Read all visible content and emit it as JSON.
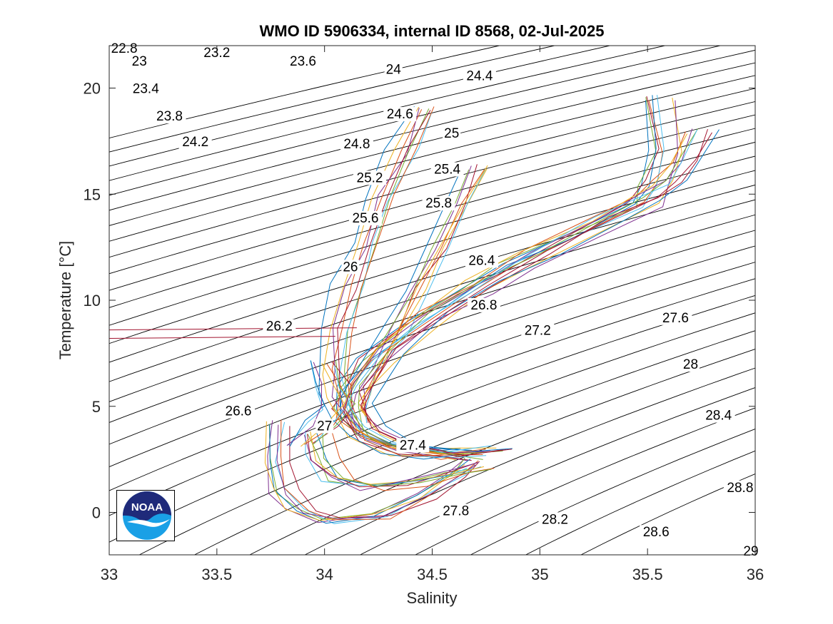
{
  "chart_data": {
    "type": "line",
    "title": "WMO ID 5906334, internal ID 8568, 02-Jul-2025",
    "xlabel": "Salinity",
    "ylabel": "Temperature [°C]",
    "xlim": [
      33,
      36
    ],
    "ylim": [
      -2,
      22
    ],
    "xticks": [
      33,
      33.5,
      34,
      34.5,
      35,
      35.5,
      36
    ],
    "xtick_labels": [
      "33",
      "33.5",
      "34",
      "34.5",
      "35",
      "35.5",
      "36"
    ],
    "yticks": [
      0,
      5,
      10,
      15,
      20
    ],
    "ytick_labels": [
      "0",
      "5",
      "10",
      "15",
      "20"
    ],
    "grid": false,
    "logo": "NOAA",
    "isopycnal_labels": [
      {
        "text": "22.8",
        "s": 33.07,
        "t": 21.7
      },
      {
        "text": "23",
        "s": 33.14,
        "t": 21.1
      },
      {
        "text": "23.2",
        "s": 33.5,
        "t": 21.5
      },
      {
        "text": "23.4",
        "s": 33.17,
        "t": 19.8
      },
      {
        "text": "23.6",
        "s": 33.9,
        "t": 21.1
      },
      {
        "text": "23.8",
        "s": 33.28,
        "t": 18.5
      },
      {
        "text": "24",
        "s": 34.32,
        "t": 20.7
      },
      {
        "text": "24.2",
        "s": 33.4,
        "t": 17.3
      },
      {
        "text": "24.4",
        "s": 34.72,
        "t": 20.4
      },
      {
        "text": "24.6",
        "s": 34.35,
        "t": 18.6
      },
      {
        "text": "24.8",
        "s": 34.15,
        "t": 17.2
      },
      {
        "text": "25",
        "s": 34.59,
        "t": 17.7
      },
      {
        "text": "25.2",
        "s": 34.21,
        "t": 15.6
      },
      {
        "text": "25.4",
        "s": 34.57,
        "t": 16.0
      },
      {
        "text": "25.6",
        "s": 34.19,
        "t": 13.7
      },
      {
        "text": "25.8",
        "s": 34.53,
        "t": 14.4
      },
      {
        "text": "26",
        "s": 34.12,
        "t": 11.4
      },
      {
        "text": "26.4",
        "s": 34.73,
        "t": 11.7
      },
      {
        "text": "26.2",
        "s": 33.79,
        "t": 8.6
      },
      {
        "text": "26.8",
        "s": 34.74,
        "t": 9.6
      },
      {
        "text": "27.2",
        "s": 34.99,
        "t": 8.4
      },
      {
        "text": "27.6",
        "s": 35.63,
        "t": 9.0
      },
      {
        "text": "28",
        "s": 35.7,
        "t": 6.8
      },
      {
        "text": "26.6",
        "s": 33.6,
        "t": 4.6
      },
      {
        "text": "27",
        "s": 34.0,
        "t": 3.9
      },
      {
        "text": "28.4",
        "s": 35.83,
        "t": 4.4
      },
      {
        "text": "27.4",
        "s": 34.41,
        "t": 3.0
      },
      {
        "text": "28.8",
        "s": 35.93,
        "t": 1.0
      },
      {
        "text": "27.8",
        "s": 34.61,
        "t": -0.1
      },
      {
        "text": "28.2",
        "s": 35.07,
        "t": -0.5
      },
      {
        "text": "28.6",
        "s": 35.54,
        "t": -1.1
      },
      {
        "text": "29",
        "s": 35.98,
        "t": -2.0
      }
    ],
    "profile_colors": [
      "#0072BD",
      "#D95319",
      "#EDB120",
      "#7E2F8E",
      "#77AC30",
      "#4DBEEE",
      "#A2142F"
    ],
    "profile_families": [
      {
        "name": "",
        "points": [
          [
            35.55,
            19.5
          ],
          [
            35.6,
            17.0
          ],
          [
            35.55,
            15.5
          ],
          [
            35.5,
            14.5
          ],
          [
            35.2,
            13.0
          ],
          [
            34.9,
            11.6
          ],
          [
            34.7,
            10.4
          ],
          [
            34.45,
            8.9
          ],
          [
            34.25,
            7.2
          ],
          [
            34.14,
            5.8
          ],
          [
            34.12,
            5.0
          ],
          [
            34.15,
            4.4
          ],
          [
            34.22,
            3.7
          ],
          [
            34.36,
            3.1
          ],
          [
            34.55,
            2.9
          ],
          [
            34.72,
            2.9
          ]
        ]
      },
      {
        "name": "",
        "points": [
          [
            34.48,
            19.0
          ],
          [
            34.38,
            17.0
          ],
          [
            34.28,
            14.8
          ],
          [
            34.2,
            12.6
          ],
          [
            34.13,
            10.6
          ],
          [
            34.08,
            8.6
          ],
          [
            34.06,
            6.6
          ],
          [
            34.07,
            5.5
          ],
          [
            34.1,
            4.5
          ],
          [
            34.18,
            3.5
          ],
          [
            34.35,
            2.8
          ],
          [
            34.55,
            2.6
          ],
          [
            34.7,
            2.6
          ]
        ]
      },
      {
        "name": "",
        "points": [
          [
            34.68,
            16.3
          ],
          [
            34.6,
            14.5
          ],
          [
            34.5,
            12.5
          ],
          [
            34.4,
            10.5
          ],
          [
            34.3,
            8.5
          ],
          [
            34.2,
            6.8
          ],
          [
            34.14,
            5.6
          ],
          [
            34.12,
            4.8
          ],
          [
            34.15,
            4.2
          ]
        ]
      },
      {
        "name": "",
        "points": [
          [
            33.82,
            4.2
          ],
          [
            33.8,
            2.5
          ],
          [
            33.84,
            1.0
          ],
          [
            33.92,
            0.0
          ],
          [
            34.05,
            -0.4
          ],
          [
            34.3,
            -0.2
          ],
          [
            34.5,
            0.8
          ],
          [
            34.65,
            1.8
          ],
          [
            34.72,
            2.4
          ]
        ]
      },
      {
        "name": "",
        "points": [
          [
            33.95,
            3.8
          ],
          [
            33.98,
            2.6
          ],
          [
            34.05,
            1.6
          ],
          [
            34.2,
            1.2
          ],
          [
            34.4,
            1.4
          ],
          [
            34.6,
            1.9
          ],
          [
            34.72,
            2.2
          ]
        ]
      },
      {
        "name": "",
        "points": [
          [
            34.0,
            7.0
          ],
          [
            34.05,
            6.0
          ],
          [
            34.08,
            5.0
          ],
          [
            34.0,
            4.2
          ],
          [
            33.9,
            3.2
          ]
        ]
      },
      {
        "name": "",
        "points": [
          [
            35.75,
            18.0
          ],
          [
            35.68,
            16.5
          ],
          [
            35.62,
            15.5
          ],
          [
            35.5,
            14.8
          ],
          [
            35.3,
            13.8
          ],
          [
            35.0,
            12.3
          ],
          [
            34.75,
            10.8
          ],
          [
            34.5,
            9.3
          ],
          [
            34.3,
            7.6
          ],
          [
            34.18,
            6.0
          ],
          [
            34.15,
            5.0
          ],
          [
            34.2,
            4.0
          ],
          [
            34.35,
            3.2
          ],
          [
            34.6,
            2.8
          ],
          [
            34.82,
            3.0
          ]
        ]
      }
    ]
  }
}
